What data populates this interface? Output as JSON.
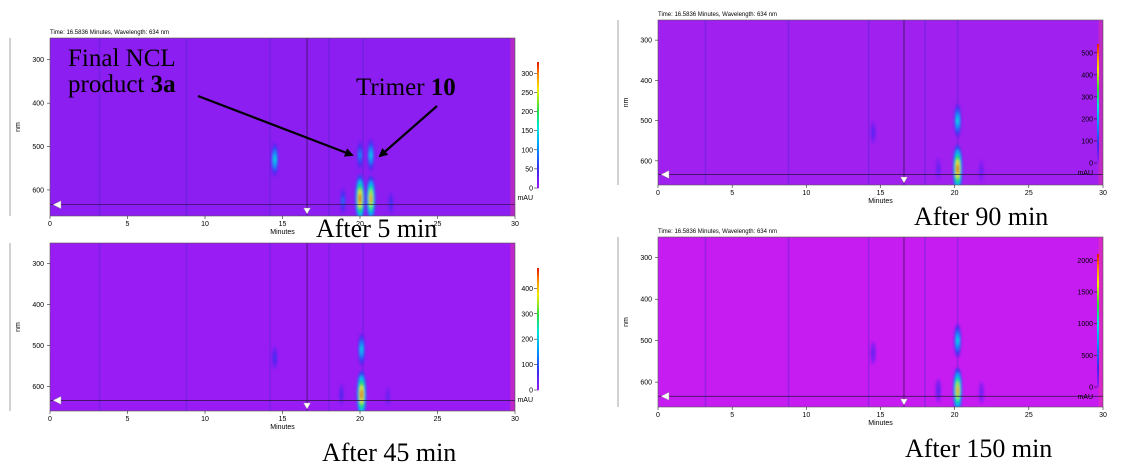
{
  "chart_data": [
    {
      "type": "heatmap",
      "title": "Time: 16.5836 Minutes, Wavelength: 634 nm",
      "caption": "After 5 min",
      "xlabel": "Minutes",
      "ylabel": "nm",
      "xlim": [
        0,
        30
      ],
      "ylim": [
        250,
        660
      ],
      "x_ticks": [
        0,
        5,
        10,
        15,
        20,
        25,
        30
      ],
      "y_ticks": [
        300,
        400,
        500,
        600
      ],
      "colorbar_label": "mAU",
      "colorbar_ticks": [
        0,
        50,
        100,
        150,
        200,
        250,
        300
      ],
      "colorbar_max": 330,
      "cursor": {
        "time_min": 16.5836,
        "wavelength_nm": 634
      },
      "peaks": [
        {
          "x": 14.5,
          "y": 530,
          "v": 160
        },
        {
          "x": 20.0,
          "y": 520,
          "v": 110
        },
        {
          "x": 20.0,
          "y": 620,
          "v": 330
        },
        {
          "x": 20.7,
          "y": 520,
          "v": 150
        },
        {
          "x": 20.7,
          "y": 620,
          "v": 300
        },
        {
          "x": 18.9,
          "y": 625,
          "v": 90
        },
        {
          "x": 22.0,
          "y": 630,
          "v": 60
        }
      ]
    },
    {
      "type": "heatmap",
      "title": "Time: 16.5836 Minutes, Wavelength: 634 nm",
      "caption": "After 90 min",
      "xlabel": "Minutes",
      "ylabel": "nm",
      "xlim": [
        0,
        30
      ],
      "ylim": [
        250,
        660
      ],
      "x_ticks": [
        0,
        5,
        10,
        15,
        20,
        25,
        30
      ],
      "y_ticks": [
        300,
        400,
        500,
        600
      ],
      "colorbar_label": "mAU",
      "colorbar_ticks": [
        0,
        100,
        200,
        300,
        400,
        500
      ],
      "colorbar_max": 540,
      "cursor": {
        "time_min": 16.5836,
        "wavelength_nm": 634
      },
      "peaks": [
        {
          "x": 14.5,
          "y": 530,
          "v": 70
        },
        {
          "x": 20.2,
          "y": 500,
          "v": 260
        },
        {
          "x": 20.2,
          "y": 620,
          "v": 540
        },
        {
          "x": 18.9,
          "y": 620,
          "v": 60
        },
        {
          "x": 21.8,
          "y": 625,
          "v": 50
        }
      ]
    },
    {
      "type": "heatmap",
      "title": "",
      "caption": "After 45 min",
      "xlabel": "Minutes",
      "ylabel": "nm",
      "xlim": [
        0,
        30
      ],
      "ylim": [
        250,
        660
      ],
      "x_ticks": [
        0,
        5,
        10,
        15,
        20,
        25,
        30
      ],
      "y_ticks": [
        300,
        400,
        500,
        600
      ],
      "colorbar_label": "mAU",
      "colorbar_ticks": [
        0,
        100,
        200,
        300,
        400
      ],
      "colorbar_max": 480,
      "cursor": {
        "time_min": 16.5836,
        "wavelength_nm": 634
      },
      "peaks": [
        {
          "x": 14.5,
          "y": 530,
          "v": 90
        },
        {
          "x": 20.1,
          "y": 510,
          "v": 220
        },
        {
          "x": 20.1,
          "y": 620,
          "v": 480
        },
        {
          "x": 18.8,
          "y": 620,
          "v": 70
        },
        {
          "x": 21.8,
          "y": 625,
          "v": 50
        }
      ]
    },
    {
      "type": "heatmap",
      "title": "Time: 16.5836 Minutes, Wavelength: 634 nm",
      "caption": "After 150 min",
      "xlabel": "Minutes",
      "ylabel": "nm",
      "xlim": [
        0,
        30
      ],
      "ylim": [
        250,
        660
      ],
      "x_ticks": [
        0,
        5,
        10,
        15,
        20,
        25,
        30
      ],
      "y_ticks": [
        300,
        400,
        500,
        600
      ],
      "colorbar_label": "mAU",
      "colorbar_ticks": [
        0,
        500,
        1000,
        1500,
        2000
      ],
      "colorbar_max": 2100,
      "cursor": {
        "time_min": 16.5836,
        "wavelength_nm": 634
      },
      "peaks": [
        {
          "x": 14.5,
          "y": 530,
          "v": 200
        },
        {
          "x": 20.2,
          "y": 500,
          "v": 1000
        },
        {
          "x": 20.2,
          "y": 620,
          "v": 1900
        },
        {
          "x": 18.9,
          "y": 620,
          "v": 250
        },
        {
          "x": 21.8,
          "y": 625,
          "v": 150
        }
      ]
    }
  ],
  "annotations": {
    "product_line1": "Final NCL",
    "product_line2": "product ",
    "product_bold": "3a",
    "trimer_text": "Trimer ",
    "trimer_bold": "10"
  },
  "colors": {
    "background": "#9a1cf4",
    "cursor_line": "#3a1a50",
    "marker": "#ffffff"
  }
}
